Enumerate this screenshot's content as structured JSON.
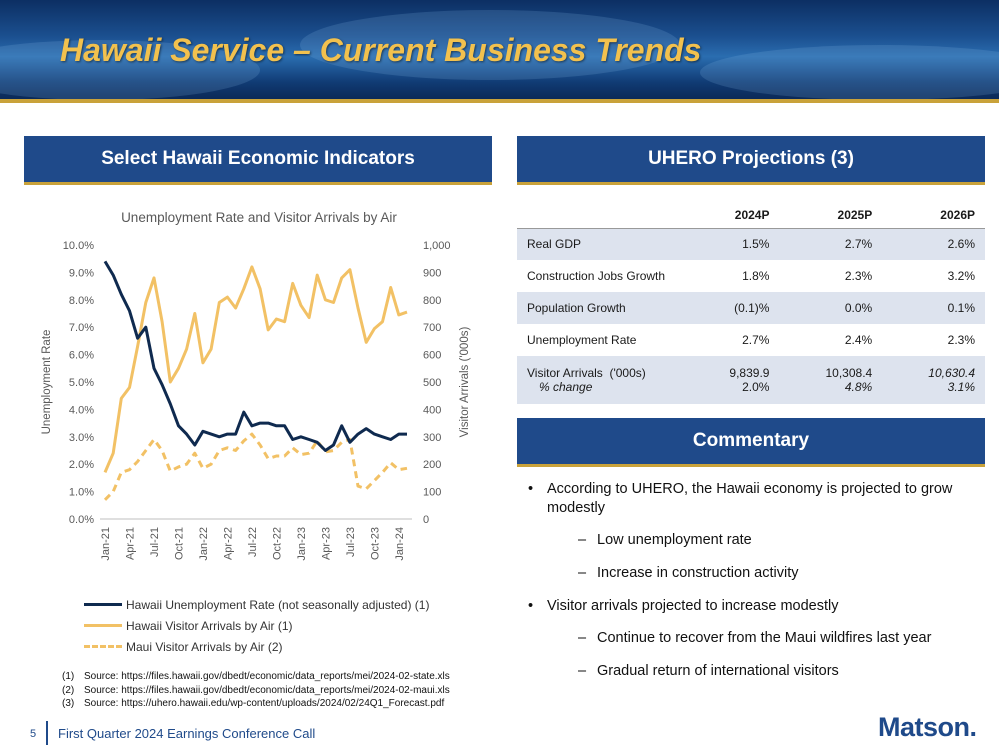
{
  "header": {
    "title": "Hawaii Service – Current Business Trends"
  },
  "left_section": {
    "heading": "Select Hawaii Economic Indicators"
  },
  "right_section": {
    "heading": "UHERO Projections (3)",
    "commentary_heading": "Commentary"
  },
  "chart_data": {
    "type": "line",
    "title": "Unemployment Rate and Visitor Arrivals by Air",
    "ylabel": "Unemployment Rate",
    "y2label": "Visitor Arrivals ('000s)",
    "ylim": [
      0,
      10
    ],
    "y2lim": [
      0,
      1000
    ],
    "y_ticks": [
      "0.0%",
      "1.0%",
      "2.0%",
      "3.0%",
      "4.0%",
      "5.0%",
      "6.0%",
      "7.0%",
      "8.0%",
      "9.0%",
      "10.0%"
    ],
    "y2_ticks": [
      "0",
      "100",
      "200",
      "300",
      "400",
      "500",
      "600",
      "700",
      "800",
      "900",
      "1,000"
    ],
    "x_tick_labels": [
      "Jan-21",
      "Apr-21",
      "Jul-21",
      "Oct-21",
      "Jan-22",
      "Apr-22",
      "Jul-22",
      "Oct-22",
      "Jan-23",
      "Apr-23",
      "Jul-23",
      "Oct-23",
      "Jan-24"
    ],
    "x": [
      "Jan-21",
      "Feb-21",
      "Mar-21",
      "Apr-21",
      "May-21",
      "Jun-21",
      "Jul-21",
      "Aug-21",
      "Sep-21",
      "Oct-21",
      "Nov-21",
      "Dec-21",
      "Jan-22",
      "Feb-22",
      "Mar-22",
      "Apr-22",
      "May-22",
      "Jun-22",
      "Jul-22",
      "Aug-22",
      "Sep-22",
      "Oct-22",
      "Nov-22",
      "Dec-22",
      "Jan-23",
      "Feb-23",
      "Mar-23",
      "Apr-23",
      "May-23",
      "Jun-23",
      "Jul-23",
      "Aug-23",
      "Sep-23",
      "Oct-23",
      "Nov-23",
      "Dec-23",
      "Jan-24",
      "Feb-24"
    ],
    "series": [
      {
        "name": "Hawaii Unemployment Rate (not seasonally adjusted) (1)",
        "axis": "left",
        "color": "#0f2a4f",
        "style": "solid",
        "values": [
          9.4,
          8.9,
          8.2,
          7.6,
          6.6,
          7.0,
          5.5,
          4.9,
          4.2,
          3.4,
          3.1,
          2.7,
          3.2,
          3.1,
          3.0,
          3.1,
          3.1,
          3.9,
          3.4,
          3.5,
          3.5,
          3.4,
          3.4,
          2.9,
          3.0,
          2.9,
          2.8,
          2.5,
          2.7,
          3.4,
          2.8,
          3.1,
          3.3,
          3.1,
          3.0,
          2.9,
          3.1,
          3.1
        ]
      },
      {
        "name": "Hawaii Visitor Arrivals by Air (1)",
        "axis": "right",
        "color": "#f2c165",
        "style": "solid",
        "values": [
          170,
          240,
          440,
          480,
          630,
          790,
          880,
          720,
          500,
          550,
          620,
          750,
          570,
          620,
          790,
          810,
          770,
          840,
          920,
          840,
          690,
          730,
          720,
          860,
          780,
          735,
          890,
          800,
          790,
          880,
          910,
          770,
          645,
          695,
          720,
          845,
          745,
          755
        ]
      },
      {
        "name": "Maui Visitor Arrivals by Air (2)",
        "axis": "right",
        "color": "#f2c165",
        "style": "dashed",
        "values": [
          70,
          100,
          170,
          180,
          210,
          250,
          290,
          250,
          175,
          190,
          200,
          240,
          185,
          200,
          250,
          260,
          250,
          285,
          310,
          270,
          220,
          230,
          230,
          260,
          235,
          240,
          285,
          245,
          250,
          280,
          290,
          120,
          110,
          140,
          170,
          205,
          180,
          185
        ]
      }
    ]
  },
  "sources": [
    {
      "num": "(1)",
      "text": "Source: https://files.hawaii.gov/dbedt/economic/data_reports/mei/2024-02-state.xls"
    },
    {
      "num": "(2)",
      "text": "Source: https://files.hawaii.gov/dbedt/economic/data_reports/mei/2024-02-maui.xls"
    },
    {
      "num": "(3)",
      "text": "Source: https://uhero.hawaii.edu/wp-content/uploads/2024/02/24Q1_Forecast.pdf"
    }
  ],
  "projections": {
    "columns": [
      "2024P",
      "2025P",
      "2026P"
    ],
    "rows": [
      {
        "label": "Real GDP",
        "values": [
          "1.5%",
          "2.7%",
          "2.6%"
        ]
      },
      {
        "label": "Construction Jobs Growth",
        "values": [
          "1.8%",
          "2.3%",
          "3.2%"
        ]
      },
      {
        "label": "Population Growth",
        "values": [
          "(0.1)%",
          "0.0%",
          "0.1%"
        ]
      },
      {
        "label": "Unemployment Rate",
        "values": [
          "2.7%",
          "2.4%",
          "2.3%"
        ]
      },
      {
        "label": "Visitor Arrivals  ('000s)",
        "sublabel": "% change",
        "values": [
          "9,839.9",
          "10,308.4",
          "10,630.4"
        ],
        "subvalues": [
          "2.0%",
          "4.8%",
          "3.1%"
        ]
      }
    ]
  },
  "commentary": {
    "bullets": [
      {
        "text": "According to UHERO, the Hawaii economy is projected to grow modestly",
        "subs": [
          "Low unemployment rate",
          "Increase in construction activity"
        ]
      },
      {
        "text": "Visitor arrivals projected to increase modestly",
        "subs": [
          "Continue to recover from the Maui wildfires last year",
          "Gradual return of international visitors"
        ]
      }
    ]
  },
  "footer": {
    "page": "5",
    "text": "First Quarter 2024 Earnings Conference Call",
    "logo": "Matson."
  }
}
